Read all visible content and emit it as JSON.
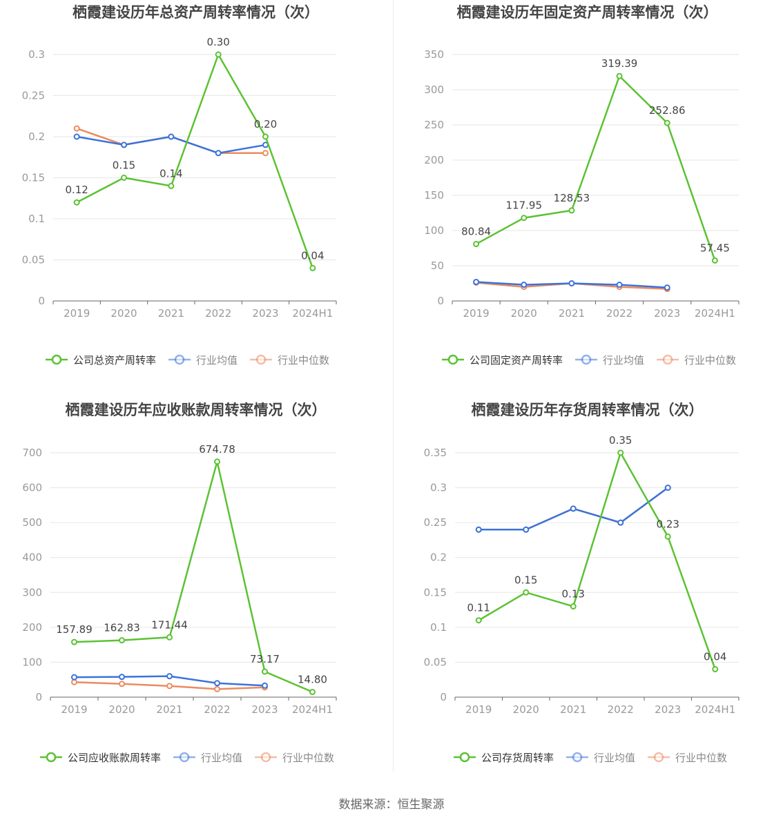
{
  "source": "数据来源：恒生聚源",
  "colors": {
    "company": "#5bc232",
    "avg": "#3b73d9",
    "median": "#ec8a60",
    "grid": "#e6e6e6",
    "axis": "#666666",
    "text": "#999999"
  },
  "chart_data": [
    {
      "type": "line",
      "title": "栖霞建设历年总资产周转率情况（次）",
      "categories": [
        "2019",
        "2020",
        "2021",
        "2022",
        "2023",
        "2024H1"
      ],
      "yticks": [
        "0",
        "0.05",
        "0.1",
        "0.15",
        "0.2",
        "0.25",
        "0.3"
      ],
      "ylim": [
        0,
        0.3
      ],
      "series": [
        {
          "name": "公司总资产周转率",
          "role": "company",
          "values": [
            0.12,
            0.15,
            0.14,
            0.3,
            0.2,
            0.04
          ],
          "labels": [
            "0.12",
            "0.15",
            "0.14",
            "0.30",
            "0.20",
            "0.04"
          ]
        },
        {
          "name": "行业均值",
          "role": "avg",
          "values": [
            0.2,
            0.19,
            0.2,
            0.18,
            0.19,
            null
          ]
        },
        {
          "name": "行业中位数",
          "role": "median",
          "values": [
            0.21,
            0.19,
            0.2,
            0.18,
            0.18,
            null
          ]
        }
      ]
    },
    {
      "type": "line",
      "title": "栖霞建设历年固定资产周转率情况（次）",
      "categories": [
        "2019",
        "2020",
        "2021",
        "2022",
        "2023",
        "2024H1"
      ],
      "yticks": [
        "0",
        "50",
        "100",
        "150",
        "200",
        "250",
        "300",
        "350"
      ],
      "ylim": [
        0,
        350
      ],
      "series": [
        {
          "name": "公司固定资产周转率",
          "role": "company",
          "values": [
            80.84,
            117.95,
            128.53,
            319.39,
            252.86,
            57.45
          ],
          "labels": [
            "80.84",
            "117.95",
            "128.53",
            "319.39",
            "252.86",
            "57.45"
          ]
        },
        {
          "name": "行业均值",
          "role": "avg",
          "values": [
            27,
            23,
            25,
            23,
            19,
            null
          ]
        },
        {
          "name": "行业中位数",
          "role": "median",
          "values": [
            26,
            20,
            25,
            20,
            17,
            null
          ]
        }
      ]
    },
    {
      "type": "line",
      "title": "栖霞建设历年应收账款周转率情况（次）",
      "categories": [
        "2019",
        "2020",
        "2021",
        "2022",
        "2023",
        "2024H1"
      ],
      "yticks": [
        "0",
        "100",
        "200",
        "300",
        "400",
        "500",
        "600",
        "700"
      ],
      "ylim": [
        0,
        700
      ],
      "series": [
        {
          "name": "公司应收账款周转率",
          "role": "company",
          "values": [
            157.89,
            162.83,
            171.44,
            674.78,
            73.17,
            14.8
          ],
          "labels": [
            "157.89",
            "162.83",
            "171.44",
            "674.78",
            "73.17",
            "14.80"
          ]
        },
        {
          "name": "行业均值",
          "role": "avg",
          "values": [
            57,
            58,
            60,
            40,
            33,
            null
          ]
        },
        {
          "name": "行业中位数",
          "role": "median",
          "values": [
            43,
            38,
            32,
            23,
            28,
            null
          ]
        }
      ]
    },
    {
      "type": "line",
      "title": "栖霞建设历年存货周转率情况（次）",
      "categories": [
        "2019",
        "2020",
        "2021",
        "2022",
        "2023",
        "2024H1"
      ],
      "yticks": [
        "0",
        "0.05",
        "0.1",
        "0.15",
        "0.2",
        "0.25",
        "0.3",
        "0.35"
      ],
      "ylim": [
        0,
        0.35
      ],
      "series": [
        {
          "name": "公司存货周转率",
          "role": "company",
          "values": [
            0.11,
            0.15,
            0.13,
            0.35,
            0.23,
            0.04
          ],
          "labels": [
            "0.11",
            "0.15",
            "0.13",
            "0.35",
            "0.23",
            "0.04"
          ]
        },
        {
          "name": "行业均值",
          "role": "avg",
          "values": [
            0.24,
            0.24,
            0.27,
            0.25,
            0.3,
            null
          ]
        },
        {
          "name": "行业中位数",
          "role": "median",
          "values": [
            0.24,
            0.24,
            0.27,
            0.25,
            0.3,
            null
          ]
        }
      ]
    }
  ]
}
